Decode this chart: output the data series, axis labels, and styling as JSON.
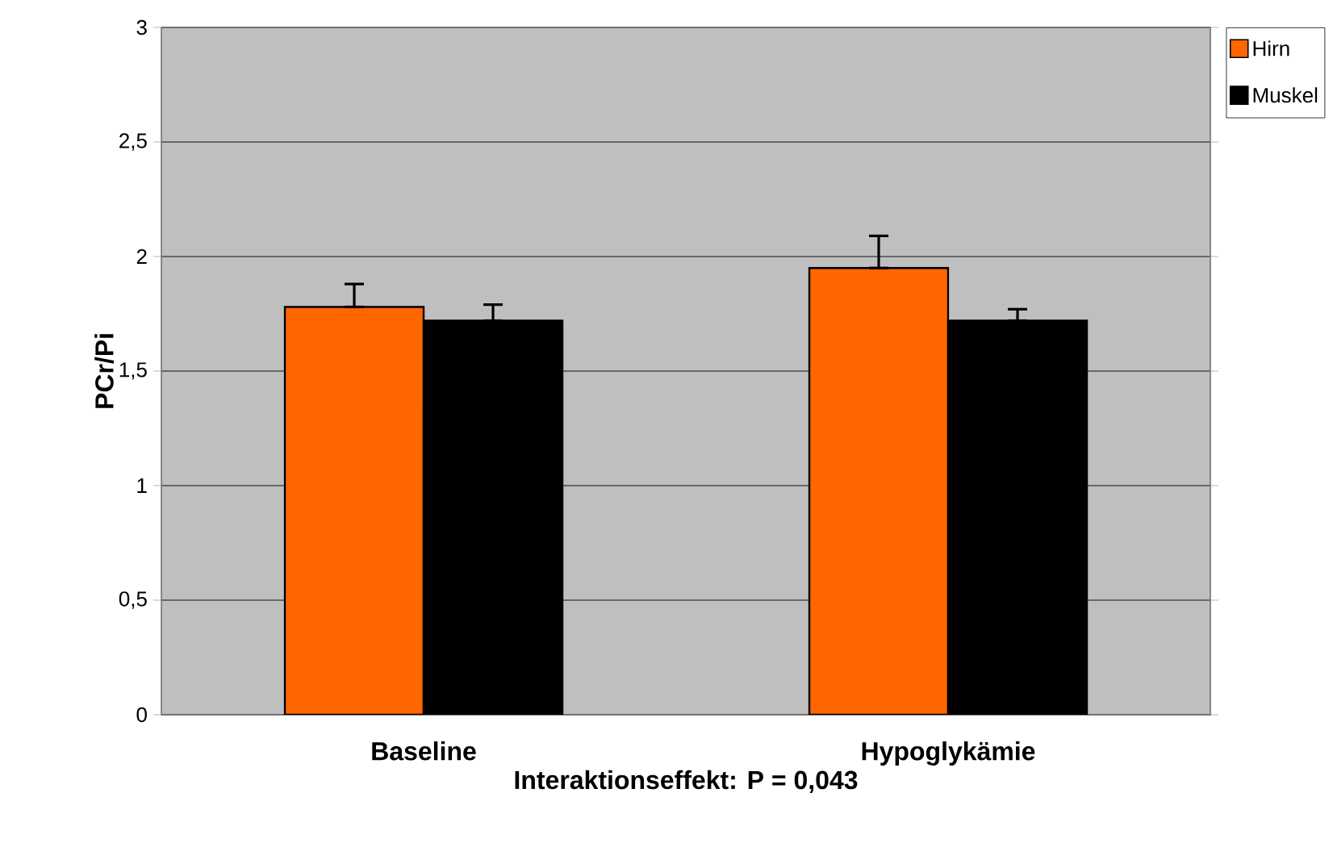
{
  "chart_data": {
    "type": "bar",
    "xlabel": "Interaktionseffekt: P = 0,043",
    "ylabel": "PCr/Pi",
    "categories": [
      "Baseline",
      "Hypoglykämie"
    ],
    "series": [
      {
        "name": "Hirn",
        "color": "#ff6600",
        "values": [
          1.78,
          1.95
        ],
        "errors": [
          [
            1.78,
            1.88
          ],
          [
            1.95,
            2.09
          ]
        ]
      },
      {
        "name": "Muskel",
        "color": "#000000",
        "values": [
          1.72,
          1.72
        ],
        "errors": [
          [
            1.72,
            1.79
          ],
          [
            1.72,
            1.77
          ]
        ]
      }
    ],
    "ylim": [
      0,
      3
    ],
    "yticks": [
      0,
      {
        "value": 0.5,
        "label": "0,5"
      },
      1,
      {
        "value": 1.5,
        "label": "1,5"
      },
      2,
      {
        "value": 2.5,
        "label": "2,5"
      },
      3
    ],
    "grid": "y",
    "legend": "top right"
  }
}
